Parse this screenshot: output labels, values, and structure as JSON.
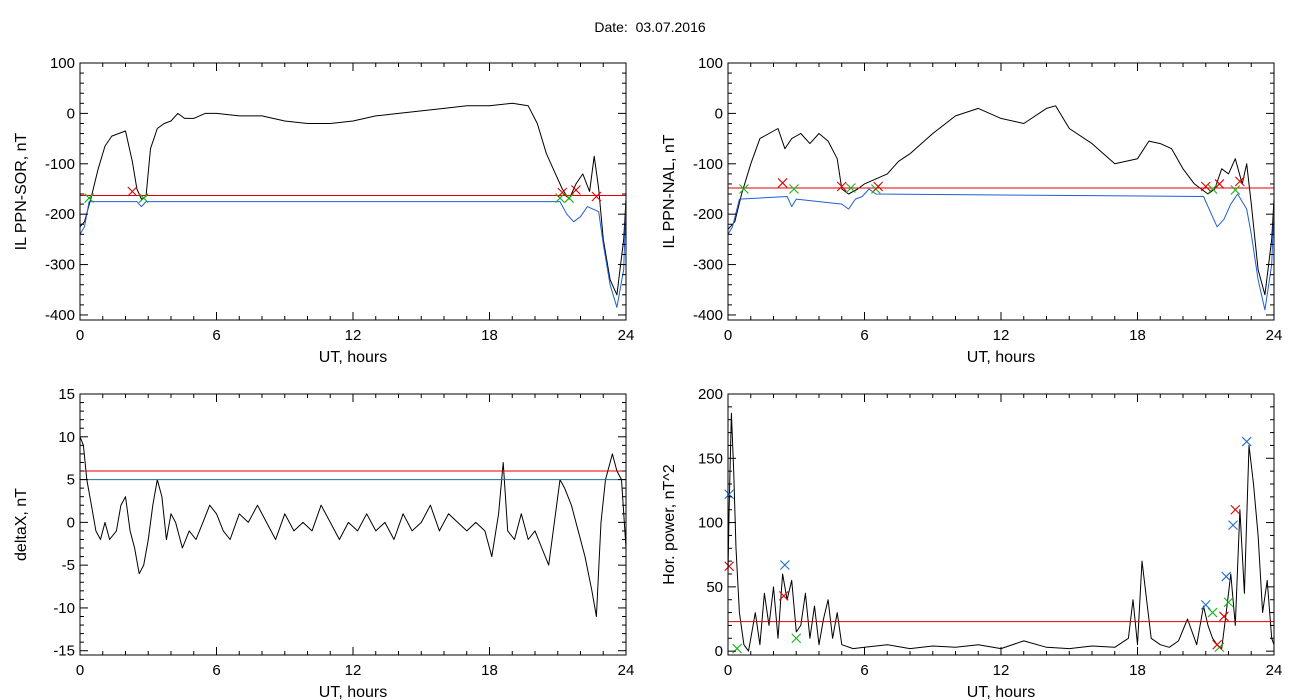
{
  "header": {
    "date_label": "Date:  03.07.2016"
  },
  "chart_data": [
    {
      "type": "line",
      "xlabel": "UT, hours",
      "ylabel": "IL PPN-SOR, nT",
      "xlim": [
        0,
        24
      ],
      "ylim": [
        -410,
        100
      ],
      "xticks": [
        0,
        6,
        12,
        18,
        24
      ],
      "yticks": [
        100,
        0,
        -100,
        -200,
        -300,
        -400
      ],
      "series": [
        {
          "color": "#000000",
          "x": [
            0,
            0.2,
            0.5,
            0.8,
            1.1,
            1.4,
            1.7,
            2.0,
            2.3,
            2.5,
            2.7,
            2.9,
            3.1,
            3.4,
            3.7,
            4.0,
            4.3,
            4.6,
            5.0,
            5.5,
            6,
            7,
            8,
            9,
            10,
            11,
            12,
            13,
            14,
            15,
            16,
            17,
            18,
            19,
            19.7,
            20.1,
            20.5,
            20.9,
            21.2,
            21.5,
            21.8,
            22.1,
            22.4,
            22.6,
            22.8,
            23.0,
            23.3,
            23.6,
            23.9,
            24
          ],
          "y": [
            -225,
            -215,
            -165,
            -110,
            -65,
            -45,
            -40,
            -35,
            -95,
            -150,
            -170,
            -165,
            -70,
            -30,
            -20,
            -15,
            0,
            -10,
            -10,
            0,
            0,
            -5,
            -5,
            -15,
            -20,
            -20,
            -15,
            -5,
            0,
            5,
            10,
            15,
            15,
            20,
            15,
            -20,
            -80,
            -120,
            -150,
            -170,
            -140,
            -120,
            -155,
            -85,
            -150,
            -250,
            -330,
            -360,
            -250,
            -170
          ]
        },
        {
          "color": "#1f5fd0",
          "x": [
            0,
            0.2,
            0.4,
            2.5,
            2.7,
            2.9,
            21.1,
            21.4,
            21.7,
            22.0,
            22.3,
            22.8,
            23.0,
            23.3,
            23.6,
            23.9,
            24
          ],
          "y": [
            -240,
            -225,
            -175,
            -175,
            -185,
            -175,
            -175,
            -200,
            -215,
            -205,
            -185,
            -195,
            -260,
            -340,
            -385,
            -310,
            -170
          ]
        }
      ],
      "threshold": {
        "value": -163,
        "color": "#e00000"
      },
      "markers_red": [
        [
          2.3,
          -155
        ],
        [
          21.2,
          -157
        ],
        [
          21.8,
          -152
        ],
        [
          22.7,
          -165
        ]
      ],
      "markers_green": [
        [
          0.4,
          -168
        ],
        [
          2.8,
          -168
        ],
        [
          21.1,
          -168
        ],
        [
          21.5,
          -168
        ]
      ]
    },
    {
      "type": "line",
      "xlabel": "UT, hours",
      "ylabel": "IL PPN-NAL, nT",
      "xlim": [
        0,
        24
      ],
      "ylim": [
        -410,
        100
      ],
      "xticks": [
        0,
        6,
        12,
        18,
        24
      ],
      "yticks": [
        100,
        0,
        -100,
        -200,
        -300,
        -400
      ],
      "series": [
        {
          "color": "#000000",
          "x": [
            0,
            0.3,
            0.6,
            1.0,
            1.4,
            1.8,
            2.2,
            2.5,
            2.8,
            3.2,
            3.6,
            4.0,
            4.4,
            4.8,
            5.0,
            5.3,
            5.7,
            6.0,
            6.5,
            7,
            7.5,
            8,
            8.5,
            9,
            10,
            11,
            12,
            13,
            14,
            14.4,
            15,
            16,
            17,
            18,
            18.5,
            19,
            19.5,
            20,
            20.5,
            20.8,
            21.1,
            21.4,
            21.7,
            22.0,
            22.3,
            22.6,
            22.8,
            23.0,
            23.3,
            23.6,
            23.9,
            24
          ],
          "y": [
            -230,
            -215,
            -160,
            -100,
            -50,
            -40,
            -30,
            -70,
            -50,
            -40,
            -60,
            -40,
            -55,
            -90,
            -150,
            -160,
            -150,
            -140,
            -130,
            -120,
            -95,
            -80,
            -60,
            -40,
            -5,
            10,
            -10,
            -20,
            10,
            15,
            -30,
            -60,
            -100,
            -90,
            -55,
            -60,
            -70,
            -110,
            -140,
            -150,
            -160,
            -150,
            -110,
            -120,
            -90,
            -140,
            -100,
            -180,
            -310,
            -360,
            -250,
            -170
          ]
        },
        {
          "color": "#1f5fd0",
          "x": [
            0,
            0.2,
            0.5,
            2.6,
            2.8,
            3.0,
            5.0,
            5.3,
            5.6,
            5.9,
            6.2,
            6.5,
            20.9,
            21.2,
            21.5,
            21.8,
            22.1,
            22.4,
            22.8,
            23.0,
            23.3,
            23.6,
            23.9,
            24
          ],
          "y": [
            -240,
            -225,
            -170,
            -165,
            -185,
            -170,
            -180,
            -190,
            -170,
            -165,
            -150,
            -160,
            -165,
            -195,
            -225,
            -210,
            -180,
            -160,
            -190,
            -240,
            -330,
            -390,
            -300,
            -180
          ]
        }
      ],
      "threshold": {
        "value": -148,
        "color": "#e00000"
      },
      "markers_red": [
        [
          2.4,
          -138
        ],
        [
          5.0,
          -145
        ],
        [
          6.6,
          -145
        ],
        [
          21.0,
          -145
        ],
        [
          21.6,
          -140
        ],
        [
          22.5,
          -135
        ]
      ],
      "markers_green": [
        [
          0.7,
          -150
        ],
        [
          2.9,
          -150
        ],
        [
          5.4,
          -148
        ],
        [
          6.5,
          -150
        ],
        [
          21.3,
          -150
        ],
        [
          22.3,
          -152
        ]
      ]
    },
    {
      "type": "line",
      "xlabel": "UT, hours",
      "ylabel": "deltaX, nT",
      "xlim": [
        0,
        24
      ],
      "ylim": [
        -15.5,
        15
      ],
      "xticks": [
        0,
        6,
        12,
        18,
        24
      ],
      "yticks": [
        15,
        10,
        5,
        0,
        -5,
        -10,
        -15
      ],
      "series": [
        {
          "color": "#000000",
          "x": [
            0,
            0.15,
            0.3,
            0.5,
            0.7,
            0.9,
            1.1,
            1.3,
            1.6,
            1.8,
            2.0,
            2.2,
            2.4,
            2.6,
            2.8,
            3.0,
            3.2,
            3.4,
            3.6,
            3.8,
            4.0,
            4.2,
            4.5,
            4.8,
            5.1,
            5.4,
            5.7,
            6.0,
            6.3,
            6.6,
            7.0,
            7.4,
            7.8,
            8.2,
            8.6,
            9.0,
            9.4,
            9.8,
            10.2,
            10.6,
            11.0,
            11.4,
            11.8,
            12.2,
            12.6,
            13.0,
            13.4,
            13.8,
            14.2,
            14.6,
            15.0,
            15.4,
            15.8,
            16.2,
            16.6,
            17.0,
            17.4,
            17.8,
            18.1,
            18.4,
            18.6,
            18.8,
            19.1,
            19.4,
            19.7,
            20.0,
            20.3,
            20.6,
            20.9,
            21.1,
            21.3,
            21.6,
            21.9,
            22.2,
            22.5,
            22.7,
            22.9,
            23.1,
            23.4,
            23.6,
            23.8,
            24
          ],
          "y": [
            10,
            9,
            5,
            2,
            -1,
            -2,
            0,
            -2,
            -1,
            2,
            3,
            -1,
            -3,
            -6,
            -5,
            -2,
            2,
            5,
            3,
            -2,
            1,
            0,
            -3,
            -1,
            -2,
            0,
            2,
            1,
            -1,
            -2,
            1,
            0,
            2,
            0,
            -2,
            1,
            -1,
            0,
            -1,
            2,
            0,
            -2,
            0,
            -1,
            1,
            -1,
            0,
            -2,
            1,
            -1,
            0,
            2,
            -1,
            1,
            0,
            -1,
            0,
            -1,
            -4,
            1,
            7,
            -1,
            -2,
            1,
            -2,
            -1,
            -3,
            -5,
            1,
            5,
            4,
            2,
            -1,
            -4,
            -8,
            -11,
            0,
            5,
            8,
            6,
            5,
            -3
          ]
        }
      ],
      "thresholds": [
        {
          "value": 6,
          "color": "#e00000"
        },
        {
          "value": 5,
          "color": "#1f6fa0"
        }
      ]
    },
    {
      "type": "line",
      "xlabel": "UT, hours",
      "ylabel": "Hor. power, nT^2",
      "xlim": [
        0,
        24
      ],
      "ylim": [
        -3,
        200
      ],
      "xticks": [
        0,
        6,
        12,
        18,
        24
      ],
      "yticks": [
        200,
        150,
        100,
        50,
        0
      ],
      "series": [
        {
          "color": "#000000",
          "x": [
            0,
            0.05,
            0.15,
            0.25,
            0.35,
            0.5,
            0.7,
            0.9,
            1.0,
            1.2,
            1.4,
            1.6,
            1.8,
            2.0,
            2.2,
            2.4,
            2.6,
            2.8,
            3.0,
            3.2,
            3.4,
            3.6,
            3.8,
            4.0,
            4.2,
            4.4,
            4.6,
            4.8,
            5.0,
            5.5,
            6,
            7,
            8,
            9,
            10,
            11,
            12,
            13,
            14,
            15,
            16,
            17,
            17.6,
            17.8,
            18.0,
            18.2,
            18.6,
            19.0,
            19.4,
            19.8,
            20.2,
            20.6,
            20.9,
            21.1,
            21.3,
            21.5,
            21.7,
            21.9,
            22.1,
            22.3,
            22.5,
            22.7,
            22.9,
            23.1,
            23.3,
            23.5,
            23.7,
            23.9,
            24
          ],
          "y": [
            60,
            110,
            185,
            140,
            80,
            30,
            5,
            0,
            10,
            30,
            5,
            45,
            20,
            50,
            10,
            60,
            40,
            55,
            15,
            20,
            45,
            10,
            35,
            5,
            25,
            40,
            10,
            30,
            5,
            2,
            3,
            5,
            2,
            4,
            3,
            5,
            2,
            8,
            3,
            2,
            4,
            3,
            10,
            40,
            5,
            70,
            10,
            5,
            3,
            8,
            25,
            5,
            35,
            20,
            10,
            5,
            2,
            30,
            60,
            20,
            110,
            45,
            160,
            130,
            90,
            30,
            55,
            10,
            5
          ]
        }
      ],
      "threshold": {
        "value": 23,
        "color": "#e00000"
      },
      "markers_red": [
        [
          0.05,
          66
        ],
        [
          2.45,
          43
        ],
        [
          21.5,
          5
        ],
        [
          21.8,
          27
        ],
        [
          22.3,
          110
        ]
      ],
      "markers_blue": [
        [
          0.05,
          122
        ],
        [
          2.5,
          67
        ],
        [
          21.0,
          36
        ],
        [
          21.9,
          58
        ],
        [
          22.2,
          98
        ],
        [
          22.8,
          163
        ]
      ],
      "markers_green": [
        [
          0.4,
          2
        ],
        [
          3.0,
          10
        ],
        [
          21.3,
          30
        ],
        [
          21.6,
          3
        ],
        [
          22.0,
          38
        ]
      ]
    }
  ]
}
